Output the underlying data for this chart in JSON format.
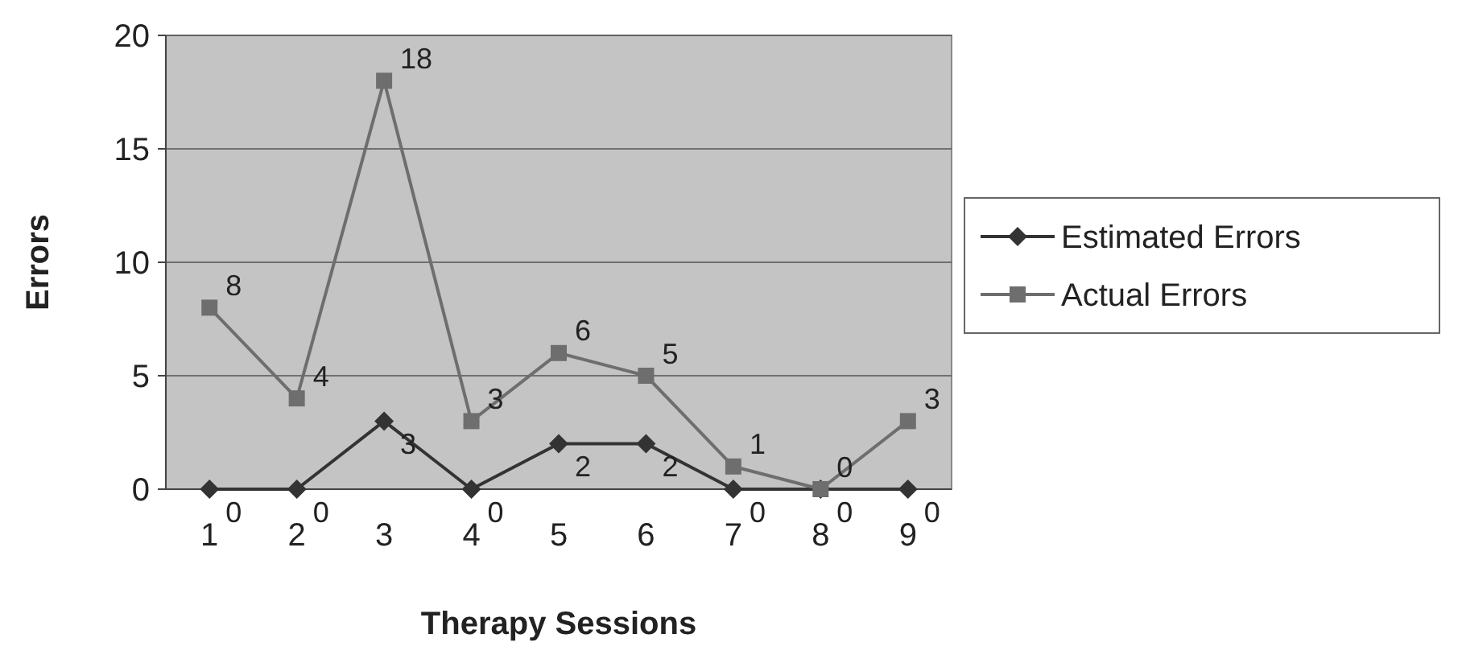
{
  "chart_data": {
    "type": "line",
    "xlabel": "Therapy Sessions",
    "ylabel": "Errors",
    "categories": [
      "1",
      "2",
      "3",
      "4",
      "5",
      "6",
      "7",
      "8",
      "9"
    ],
    "series": [
      {
        "name": "Estimated Errors",
        "color": "#333333",
        "marker": "diamond",
        "values": [
          0,
          0,
          3,
          0,
          2,
          2,
          0,
          0,
          0
        ]
      },
      {
        "name": "Actual Errors",
        "color": "#6e6e6e",
        "marker": "square",
        "values": [
          8,
          4,
          18,
          3,
          6,
          5,
          1,
          0,
          3
        ]
      }
    ],
    "ylim": [
      0,
      20
    ],
    "yticks": [
      0,
      5,
      10,
      15,
      20
    ],
    "grid": "y",
    "legend": "right",
    "data_labels": true
  }
}
